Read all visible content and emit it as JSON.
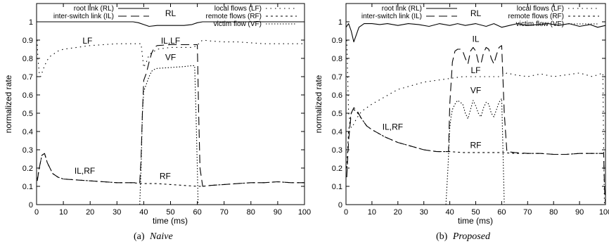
{
  "chart_data": [
    {
      "type": "line",
      "caption_prefix": "(a)",
      "caption_method": "Naive",
      "xlabel": "time (ms)",
      "ylabel": "normalized rate",
      "xlim": [
        0,
        100
      ],
      "ylim": [
        0,
        1.1
      ],
      "xticks": [
        0,
        10,
        20,
        30,
        40,
        50,
        60,
        70,
        80,
        90,
        100
      ],
      "yticks": [
        0,
        0.1,
        0.2,
        0.3,
        0.4,
        0.5,
        0.6,
        0.7,
        0.8,
        0.9,
        1
      ],
      "grid": false,
      "legend_placement": "top",
      "series": [
        {
          "name": "root link (RL)",
          "style": "solid",
          "x": [
            0,
            36,
            38,
            40,
            42,
            45,
            50,
            55,
            58,
            60,
            62,
            100
          ],
          "y": [
            1.0,
            1.0,
            0.995,
            0.985,
            0.975,
            0.98,
            0.98,
            0.98,
            0.985,
            0.995,
            1.0,
            1.0
          ]
        },
        {
          "name": "inter-switch link (IL)",
          "style": "longdash",
          "x": [
            0.3,
            1,
            2,
            3,
            4,
            6,
            8,
            10,
            15,
            20,
            25,
            30,
            35,
            38.5,
            39,
            39.5,
            40,
            41,
            42,
            43,
            44,
            45,
            50,
            55,
            58,
            60,
            60.5,
            61,
            62,
            65,
            70,
            75,
            80,
            85,
            90,
            95,
            100
          ],
          "y": [
            0.13,
            0.2,
            0.27,
            0.28,
            0.23,
            0.17,
            0.15,
            0.14,
            0.135,
            0.13,
            0.125,
            0.12,
            0.12,
            0.12,
            0.25,
            0.5,
            0.68,
            0.72,
            0.78,
            0.83,
            0.86,
            0.87,
            0.875,
            0.875,
            0.875,
            0.875,
            0.5,
            0.2,
            0.1,
            0.105,
            0.11,
            0.115,
            0.12,
            0.12,
            0.125,
            0.12,
            0.12
          ]
        },
        {
          "name": "local flows (LF)",
          "style": "dotted",
          "x": [
            0.2,
            0.5,
            1,
            1.5,
            2,
            3,
            4,
            5,
            6,
            8,
            10,
            15,
            20,
            25,
            30,
            35,
            39,
            40,
            41,
            42,
            45,
            50,
            55,
            58,
            60,
            61,
            62,
            65,
            70,
            75,
            80,
            85,
            90,
            95,
            100
          ],
          "y": [
            0.9,
            0.8,
            0.72,
            0.7,
            0.72,
            0.76,
            0.79,
            0.81,
            0.82,
            0.84,
            0.85,
            0.86,
            0.87,
            0.875,
            0.88,
            0.88,
            0.88,
            0.75,
            0.78,
            0.82,
            0.85,
            0.86,
            0.86,
            0.86,
            0.87,
            0.89,
            0.9,
            0.895,
            0.89,
            0.89,
            0.885,
            0.88,
            0.88,
            0.88,
            0.88
          ]
        },
        {
          "name": "remote flows (RF)",
          "style": "dashed",
          "x": [
            0.3,
            1,
            2,
            3,
            4,
            6,
            8,
            10,
            15,
            20,
            25,
            30,
            35,
            40,
            45,
            50,
            55,
            60,
            62,
            65,
            70,
            75,
            80,
            85,
            90,
            95,
            100
          ],
          "y": [
            0.14,
            0.2,
            0.27,
            0.28,
            0.23,
            0.17,
            0.15,
            0.14,
            0.135,
            0.13,
            0.125,
            0.12,
            0.12,
            0.115,
            0.115,
            0.11,
            0.105,
            0.1,
            0.1,
            0.105,
            0.11,
            0.115,
            0.12,
            0.12,
            0.125,
            0.12,
            0.12
          ]
        },
        {
          "name": "victim flow (VF)",
          "style": "shortdot",
          "x": [
            38.5,
            39,
            39.5,
            40,
            41,
            42,
            43,
            44,
            45,
            50,
            55,
            58,
            59,
            59.5,
            60,
            60.3
          ],
          "y": [
            0.0,
            0.2,
            0.5,
            0.62,
            0.66,
            0.7,
            0.73,
            0.74,
            0.745,
            0.75,
            0.755,
            0.76,
            0.76,
            0.5,
            0.2,
            0.0
          ]
        }
      ],
      "annotations": [
        {
          "text": "RL",
          "x": 50,
          "y": 1.03
        },
        {
          "text": "LF",
          "x": 19,
          "y": 0.88
        },
        {
          "text": "IL,LF",
          "x": 50,
          "y": 0.88
        },
        {
          "text": "VF",
          "x": 50,
          "y": 0.79
        },
        {
          "text": "IL,RF",
          "x": 18,
          "y": 0.17
        },
        {
          "text": "RF",
          "x": 48,
          "y": 0.14
        }
      ]
    },
    {
      "type": "line",
      "caption_prefix": "(b)",
      "caption_method": "Proposed",
      "xlabel": "time (ms)",
      "ylabel": "normalized rate",
      "xlim": [
        0,
        100
      ],
      "ylim": [
        0,
        1.1
      ],
      "xticks": [
        0,
        10,
        20,
        30,
        40,
        50,
        60,
        70,
        80,
        90,
        100
      ],
      "yticks": [
        0,
        0.1,
        0.2,
        0.3,
        0.4,
        0.5,
        0.6,
        0.7,
        0.8,
        0.9,
        1
      ],
      "grid": false,
      "legend_placement": "top",
      "series": [
        {
          "name": "root link (RL)",
          "style": "solid",
          "x": [
            0,
            1,
            2,
            3,
            4,
            5,
            7,
            10,
            13,
            16,
            20,
            24,
            28,
            32,
            36,
            40,
            43,
            46,
            50,
            54,
            57,
            60,
            63,
            66,
            70,
            74,
            78,
            82,
            86,
            90,
            94,
            97,
            100
          ],
          "y": [
            0.97,
            0.99,
            0.95,
            0.89,
            0.93,
            0.97,
            0.99,
            0.99,
            0.985,
            0.99,
            0.98,
            0.99,
            0.985,
            0.975,
            0.99,
            0.98,
            0.99,
            0.98,
            0.99,
            0.975,
            0.99,
            0.97,
            0.98,
            0.99,
            0.98,
            0.985,
            0.99,
            0.98,
            0.99,
            0.975,
            0.985,
            0.97,
            0.98
          ]
        },
        {
          "name": "inter-switch link (IL)",
          "style": "longdash",
          "x": [
            0.3,
            1,
            2,
            3,
            4,
            6,
            8,
            10,
            15,
            20,
            25,
            30,
            35,
            38.5,
            39.5,
            40,
            41,
            42,
            43,
            44,
            45,
            46,
            47,
            48,
            49,
            50,
            51,
            52,
            53,
            54,
            55,
            56,
            57,
            58,
            59,
            60,
            61,
            62,
            65,
            70,
            75,
            80,
            85,
            90,
            95,
            99.3,
            99.6,
            100
          ],
          "y": [
            0.15,
            0.35,
            0.5,
            0.53,
            0.52,
            0.47,
            0.43,
            0.41,
            0.37,
            0.34,
            0.32,
            0.3,
            0.29,
            0.29,
            0.29,
            0.55,
            0.78,
            0.84,
            0.85,
            0.85,
            0.84,
            0.8,
            0.77,
            0.84,
            0.86,
            0.84,
            0.78,
            0.77,
            0.83,
            0.86,
            0.85,
            0.8,
            0.77,
            0.82,
            0.86,
            0.87,
            0.5,
            0.29,
            0.285,
            0.28,
            0.28,
            0.275,
            0.275,
            0.28,
            0.28,
            0.28,
            0.1,
            0.0
          ]
        },
        {
          "name": "local flows (LF)",
          "style": "dotted",
          "x": [
            0.3,
            1,
            2,
            3,
            4,
            6,
            8,
            10,
            15,
            20,
            25,
            30,
            35,
            40,
            45,
            50,
            55,
            60,
            62,
            65,
            70,
            75,
            80,
            85,
            90,
            95,
            99,
            99.3,
            99.6
          ],
          "y": [
            0.9,
            0.5,
            0.42,
            0.44,
            0.47,
            0.51,
            0.53,
            0.55,
            0.59,
            0.63,
            0.65,
            0.67,
            0.68,
            0.69,
            0.7,
            0.7,
            0.7,
            0.7,
            0.72,
            0.71,
            0.7,
            0.715,
            0.7,
            0.71,
            0.72,
            0.7,
            0.72,
            0.3,
            0.0
          ]
        },
        {
          "name": "remote flows (RF)",
          "style": "dashed",
          "x": [
            0.3,
            1,
            2,
            3,
            4,
            6,
            8,
            10,
            15,
            20,
            25,
            30,
            35,
            40,
            45,
            50,
            55,
            60,
            65,
            70,
            75,
            80,
            85,
            90,
            95,
            100
          ],
          "y": [
            0.2,
            0.4,
            0.5,
            0.52,
            0.51,
            0.47,
            0.43,
            0.41,
            0.37,
            0.34,
            0.32,
            0.3,
            0.29,
            0.29,
            0.285,
            0.285,
            0.285,
            0.285,
            0.28,
            0.28,
            0.28,
            0.275,
            0.275,
            0.28,
            0.28,
            0.28
          ]
        },
        {
          "name": "victim flow (VF)",
          "style": "shortdot",
          "x": [
            38.5,
            39.3,
            40,
            40.5,
            41,
            42,
            43,
            44,
            45,
            46,
            47,
            48,
            49,
            50,
            51,
            52,
            53,
            54,
            55,
            56,
            57,
            58,
            59,
            60,
            60.5,
            61
          ],
          "y": [
            0.0,
            0.2,
            0.42,
            0.48,
            0.52,
            0.55,
            0.57,
            0.56,
            0.55,
            0.5,
            0.47,
            0.52,
            0.57,
            0.54,
            0.5,
            0.48,
            0.53,
            0.56,
            0.55,
            0.5,
            0.48,
            0.52,
            0.56,
            0.58,
            0.3,
            0.0
          ]
        }
      ],
      "annotations": [
        {
          "text": "RL",
          "x": 50,
          "y": 1.03
        },
        {
          "text": "IL",
          "x": 50,
          "y": 0.89
        },
        {
          "text": "LF",
          "x": 50,
          "y": 0.72
        },
        {
          "text": "VF",
          "x": 50,
          "y": 0.61
        },
        {
          "text": "IL,RF",
          "x": 18,
          "y": 0.41
        },
        {
          "text": "RF",
          "x": 50,
          "y": 0.31
        }
      ]
    }
  ]
}
